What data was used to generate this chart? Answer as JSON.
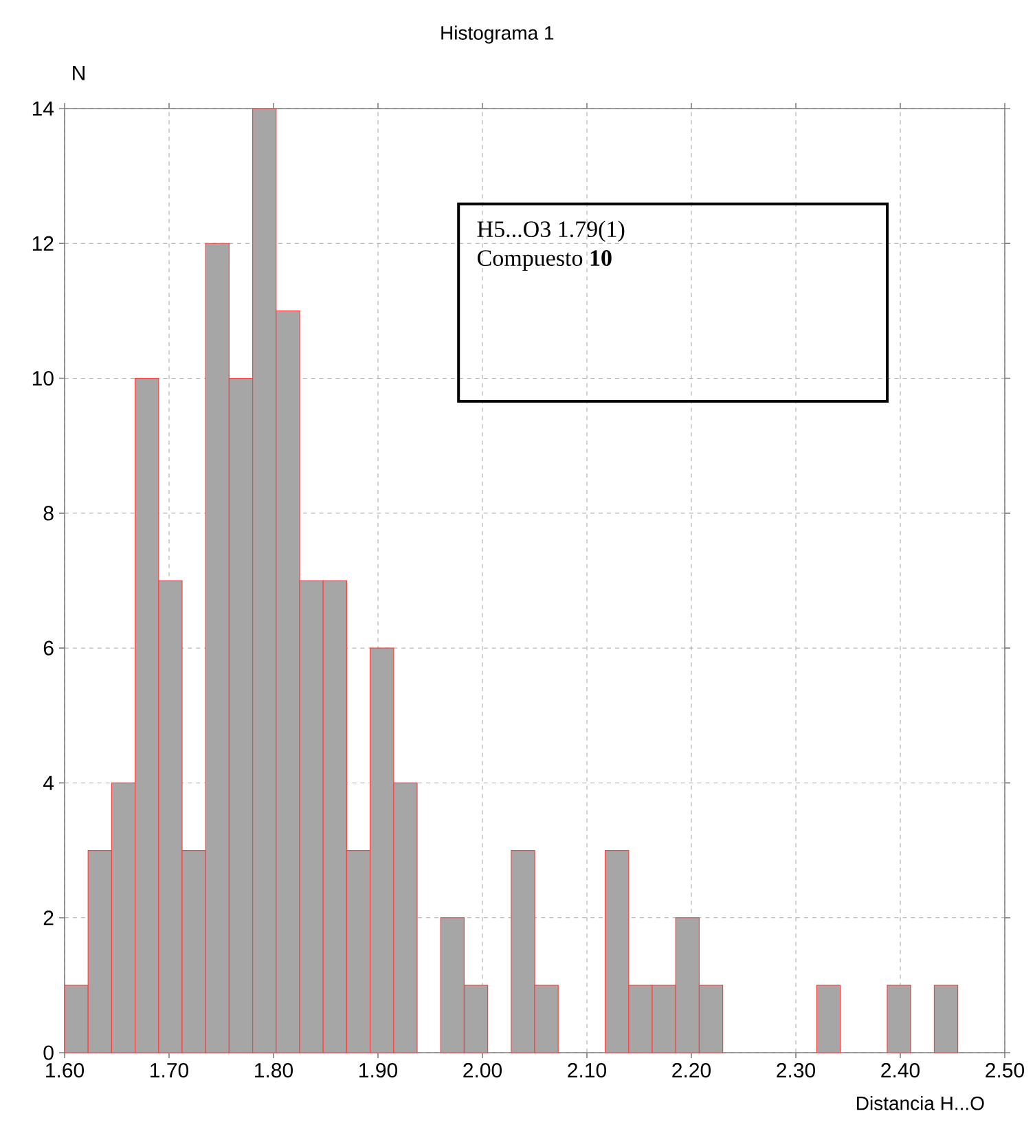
{
  "chart_data": {
    "type": "histogram",
    "title": "Histograma 1",
    "xlabel": "Distancia H...O",
    "ylabel": "N",
    "bins": [
      1.6,
      1.6225,
      1.645,
      1.6675,
      1.69,
      1.7125,
      1.735,
      1.7575,
      1.78,
      1.8025,
      1.825,
      1.8475,
      1.87,
      1.8925,
      1.915,
      1.9375,
      1.96,
      1.9825,
      2.005,
      2.0275,
      2.05,
      2.0725,
      2.095,
      2.1175,
      2.14,
      2.1625,
      2.185,
      2.2075,
      2.23,
      2.2525,
      2.275,
      2.2975,
      2.32,
      2.3425,
      2.365,
      2.3875,
      2.41,
      2.4325,
      2.455
    ],
    "values": [
      1,
      3,
      4,
      10,
      7,
      3,
      12,
      10,
      14,
      11,
      7,
      7,
      3,
      6,
      4,
      0,
      2,
      1,
      0,
      3,
      1,
      0,
      0,
      3,
      1,
      1,
      2,
      1,
      0,
      0,
      0,
      0,
      1,
      0,
      0,
      1,
      0,
      1
    ],
    "color": "#a6a6a6",
    "xlim": [
      1.6,
      2.5
    ],
    "ylim": [
      0,
      14
    ],
    "xticks": [
      {
        "value": 1.6,
        "label": "1.60"
      },
      {
        "value": 1.7,
        "label": "1.70"
      },
      {
        "value": 1.8,
        "label": "1.80"
      },
      {
        "value": 1.9,
        "label": "1.90"
      },
      {
        "value": 2.0,
        "label": "2.00"
      },
      {
        "value": 2.1,
        "label": "2.10"
      },
      {
        "value": 2.2,
        "label": "2.20"
      },
      {
        "value": 2.3,
        "label": "2.30"
      },
      {
        "value": 2.4,
        "label": "2.40"
      },
      {
        "value": 2.5,
        "label": "2.50"
      }
    ],
    "yticks": [
      0,
      2,
      4,
      6,
      8,
      10,
      12,
      14
    ],
    "grid": true,
    "annotations": [
      "H5...O3  1.79(1)",
      "Compuesto **10**"
    ]
  }
}
